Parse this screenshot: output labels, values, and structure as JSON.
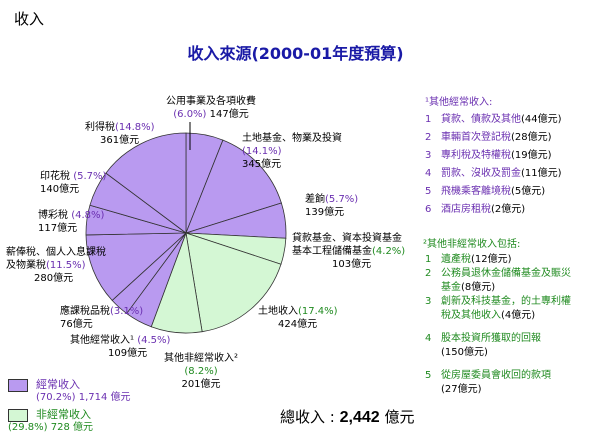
{
  "corner_label": "收入",
  "chart_data": {
    "type": "pie",
    "title": "收入來源(2000-01年度預算)",
    "unit": "億元",
    "slices": [
      {
        "name": "公用事業及各項收費",
        "pct": "(6.0%)",
        "value": 147,
        "amount_label": "147億元",
        "group": "recurrent"
      },
      {
        "name": "土地基金、物業及投資",
        "pct": "(14.1%)",
        "value": 345,
        "amount_label": "345億元",
        "group": "recurrent"
      },
      {
        "name": "差餉",
        "pct": "(5.7%)",
        "value": 139,
        "amount_label": "139億元",
        "group": "recurrent"
      },
      {
        "name": "貸款基金、資本投資基金\n基本工程儲備基金",
        "pct": "(4.2%)",
        "value": 103,
        "amount_label": "103億元",
        "group": "nonrecurrent"
      },
      {
        "name": "土地收入",
        "pct": "(17.4%)",
        "value": 424,
        "amount_label": "424億元",
        "group": "nonrecurrent"
      },
      {
        "name": "其他非經常收入²",
        "pct": "(8.2%)",
        "value": 201,
        "amount_label": "201億元",
        "group": "nonrecurrent"
      },
      {
        "name": "其他經常收入¹",
        "pct": "(4.5%)",
        "value": 109,
        "amount_label": "109億元",
        "group": "recurrent"
      },
      {
        "name": "應課稅品稅",
        "pct": "(3.1%)",
        "value": 76,
        "amount_label": "76億元",
        "group": "recurrent"
      },
      {
        "name": "薪俸稅、個人入息課稅\n及物業稅",
        "pct": "(11.5%)",
        "value": 280,
        "amount_label": "280億元",
        "group": "recurrent"
      },
      {
        "name": "博彩稅",
        "pct": "(4.8%)",
        "value": 117,
        "amount_label": "117億元",
        "group": "recurrent"
      },
      {
        "name": "印花稅",
        "pct": "(5.7%)",
        "value": 140,
        "amount_label": "140億元",
        "group": "recurrent"
      },
      {
        "name": "利得稅",
        "pct": "(14.8%)",
        "value": 361,
        "amount_label": "361億元",
        "group": "recurrent"
      }
    ],
    "colors": {
      "recurrent": "#b99af0",
      "nonrecurrent": "#d4f7d4",
      "outline": "#333333"
    },
    "legend": [
      {
        "label": "經常收入",
        "detail": "(70.2%) 1,714 億元",
        "group": "recurrent"
      },
      {
        "label": "非經常收入",
        "detail": "(29.8%) 728 億元",
        "group": "nonrecurrent"
      }
    ],
    "total_label": "總收入 :",
    "total_value": "2,442",
    "total_unit": "億元"
  },
  "notes_recurrent": {
    "heading": "¹其他經常收入:",
    "items": [
      {
        "n": "1",
        "text": "貸款、債款及其他",
        "amount": "(44億元)"
      },
      {
        "n": "2",
        "text": "車輛首次登記稅",
        "amount": "(28億元)"
      },
      {
        "n": "3",
        "text": "專利稅及特權稅",
        "amount": "(19億元)"
      },
      {
        "n": "4",
        "text": "罰款、沒收及罰金",
        "amount": "(11億元)"
      },
      {
        "n": "5",
        "text": "飛機乘客離境稅",
        "amount": "(5億元)"
      },
      {
        "n": "6",
        "text": "酒店房租稅",
        "amount": "(2億元)"
      }
    ]
  },
  "notes_nonrecurrent": {
    "heading": "²其他非經常收入包括:",
    "items": [
      {
        "n": "1",
        "lines": [
          "遺產稅"
        ],
        "amount": "(12億元)"
      },
      {
        "n": "2",
        "lines": [
          "公務員退休金儲備基金及賑災",
          "基金"
        ],
        "amount": "(8億元)"
      },
      {
        "n": "3",
        "lines": [
          "創新及科技基金，的土專利權",
          "稅及其他收入"
        ],
        "amount": "(4億元)"
      },
      {
        "n": "4",
        "lines": [
          "股本投資所獲取的回報"
        ],
        "amount": "(150億元)"
      },
      {
        "n": "5",
        "lines": [
          "從房屋委員會收回的款項"
        ],
        "amount": "(27億元)"
      }
    ]
  }
}
